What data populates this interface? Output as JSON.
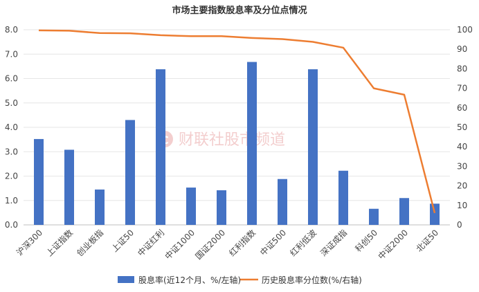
{
  "watermark": "财联社股市频道",
  "chart_data": {
    "type": "bar",
    "title": "市场主要指数股息率及分位点情况",
    "categories": [
      "沪深300",
      "上证指数",
      "创业板指",
      "上证50",
      "中证红利",
      "中证1000",
      "国证2000",
      "红利指数",
      "中证500",
      "红利低波",
      "深证成指",
      "科创50",
      "中证2000",
      "北证50"
    ],
    "series": [
      {
        "name": "股息率(近12个月、%/左轴)",
        "type": "bar",
        "axis": "left",
        "values": [
          3.52,
          3.08,
          1.45,
          4.3,
          6.38,
          1.53,
          1.42,
          6.68,
          1.88,
          6.38,
          2.22,
          0.66,
          1.1,
          0.87
        ]
      },
      {
        "name": "历史股息率分位数(%/右轴)",
        "type": "line",
        "axis": "right",
        "values": [
          99.7,
          99.5,
          98.3,
          98.2,
          97.2,
          96.7,
          96.7,
          95.8,
          95.2,
          93.8,
          90.8,
          70.0,
          66.7,
          6.1
        ]
      }
    ],
    "y_left": {
      "min": 0,
      "max": 8,
      "step": 1,
      "tick_labels": [
        "0.0",
        "1.0",
        "2.0",
        "3.0",
        "4.0",
        "5.0",
        "6.0",
        "7.0",
        "8.0"
      ]
    },
    "y_right": {
      "min": 0,
      "max": 100,
      "step": 10,
      "tick_labels": [
        "0",
        "10",
        "20",
        "30",
        "40",
        "50",
        "60",
        "70",
        "80",
        "90",
        "100"
      ]
    },
    "grid": true,
    "legend_position": "bottom",
    "colors": {
      "bar": "#4472C4",
      "line": "#ED7D31"
    }
  }
}
